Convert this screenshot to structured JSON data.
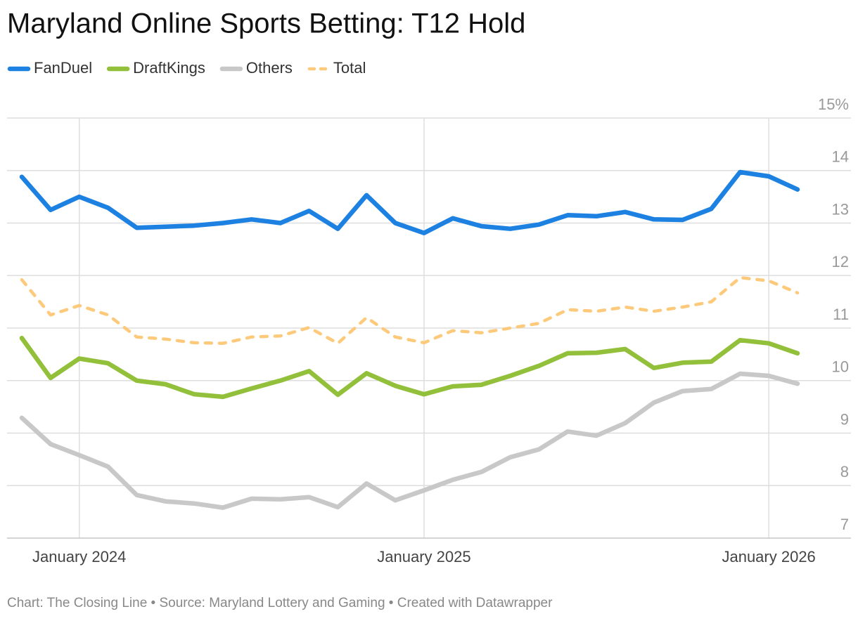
{
  "chart_data": {
    "type": "line",
    "title": "Maryland Online Sports Betting: T12 Hold",
    "source": "Chart: The Closing Line • Source: Maryland Lottery and Gaming • Created with Datawrapper",
    "categories": [
      null,
      null,
      "January 2024",
      null,
      null,
      null,
      null,
      null,
      null,
      null,
      null,
      null,
      null,
      null,
      "January 2025",
      null,
      null,
      null,
      null,
      null,
      null,
      null,
      null,
      null,
      null,
      null,
      "January 2026",
      null
    ],
    "series": [
      {
        "name": "FanDuel",
        "color": "#1d81e2",
        "style": "solid",
        "values": [
          13.88,
          13.25,
          13.5,
          13.29,
          12.91,
          12.93,
          12.95,
          13.0,
          13.07,
          13.0,
          13.23,
          12.89,
          13.53,
          13.0,
          12.81,
          13.09,
          12.94,
          12.89,
          12.97,
          13.15,
          13.13,
          13.21,
          13.07,
          13.06,
          13.27,
          13.97,
          13.89,
          13.64
        ]
      },
      {
        "name": "DraftKings",
        "color": "#92c03a",
        "style": "solid",
        "values": [
          10.81,
          10.05,
          10.42,
          10.33,
          10.0,
          9.93,
          9.74,
          9.69,
          9.85,
          10.0,
          10.18,
          9.73,
          10.14,
          9.9,
          9.74,
          9.89,
          9.92,
          10.09,
          10.28,
          10.52,
          10.53,
          10.6,
          10.24,
          10.34,
          10.36,
          10.77,
          10.71,
          10.52
        ]
      },
      {
        "name": "Others",
        "color": "#c8c8c8",
        "style": "solid",
        "values": [
          9.29,
          8.79,
          8.58,
          8.36,
          7.82,
          7.7,
          7.66,
          7.58,
          7.75,
          7.74,
          7.78,
          7.59,
          8.04,
          7.72,
          7.91,
          8.11,
          8.26,
          8.54,
          8.69,
          9.03,
          8.95,
          9.19,
          9.58,
          9.8,
          9.84,
          10.13,
          10.09,
          9.94
        ]
      },
      {
        "name": "Total",
        "color": "#fdc97a",
        "style": "dashed",
        "values": [
          11.92,
          11.25,
          11.43,
          11.25,
          10.83,
          10.79,
          10.72,
          10.71,
          10.83,
          10.85,
          11.01,
          10.71,
          11.2,
          10.83,
          10.72,
          10.95,
          10.91,
          11.0,
          11.09,
          11.35,
          11.32,
          11.4,
          11.32,
          11.4,
          11.5,
          11.96,
          11.9,
          11.67
        ]
      }
    ],
    "ylim": [
      7,
      15
    ],
    "yticks": [
      7,
      8,
      9,
      10,
      11,
      12,
      13,
      14,
      {
        "value": 15,
        "label": "15%"
      }
    ],
    "grid": true
  }
}
